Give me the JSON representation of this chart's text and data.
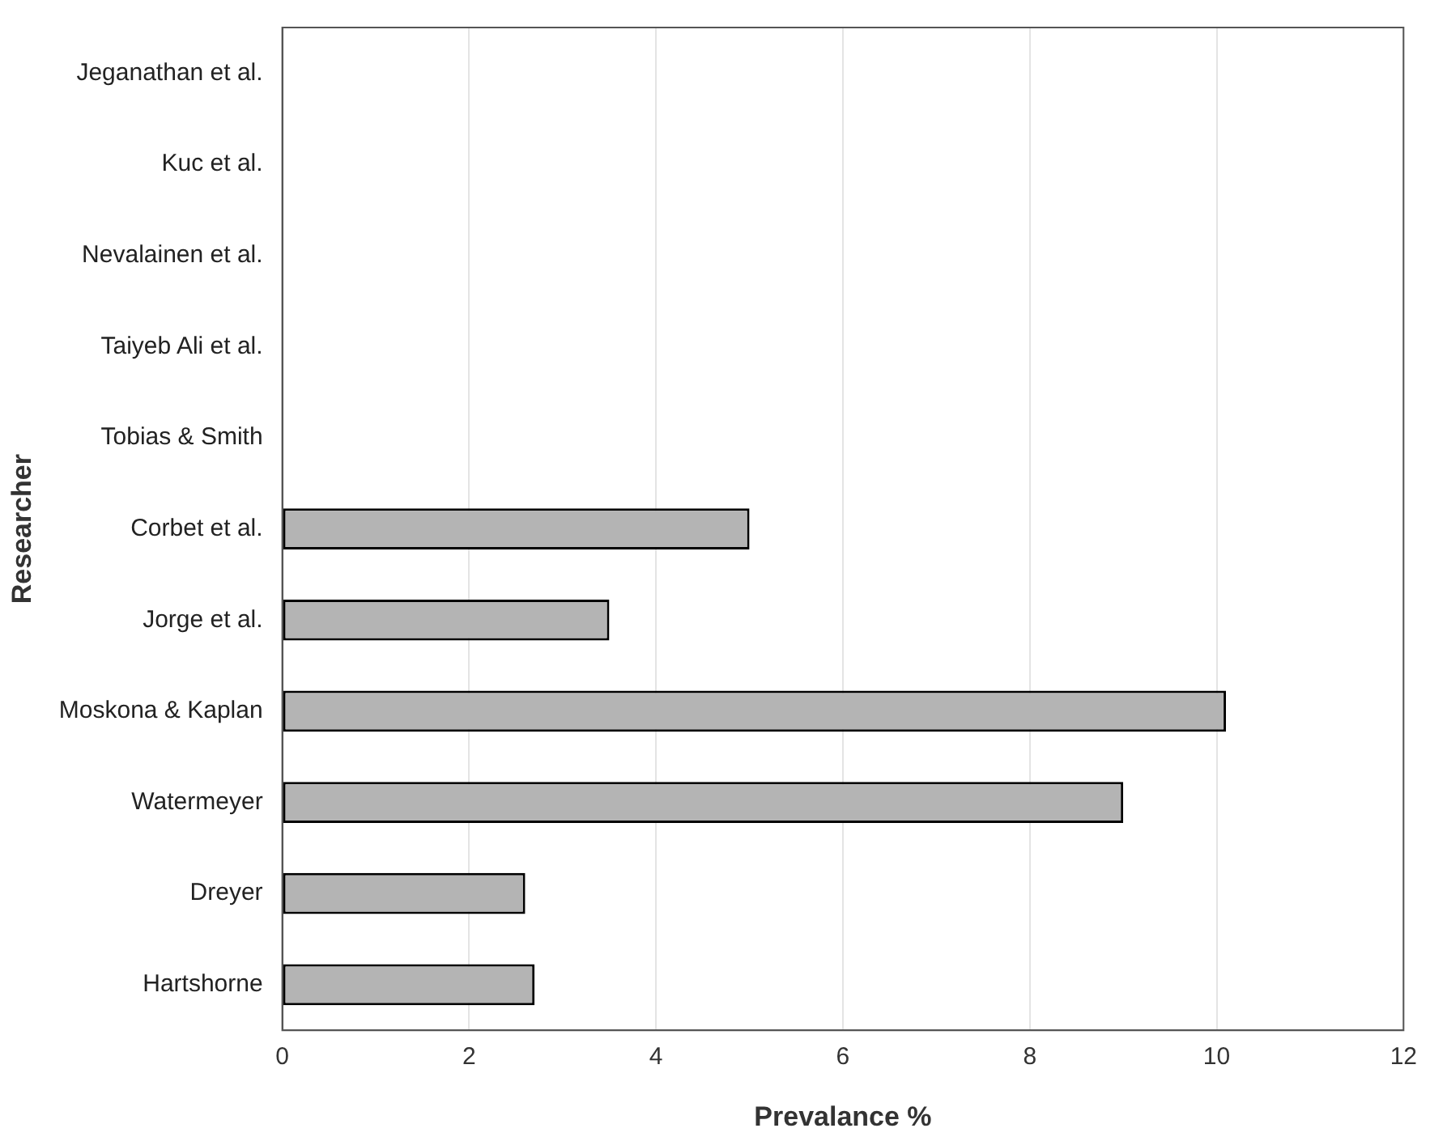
{
  "chart_data": {
    "type": "bar",
    "orientation": "horizontal",
    "xlabel": "Prevalance %",
    "ylabel": "Researcher",
    "categories": [
      "Jeganathan et al.",
      "Kuc et al.",
      "Nevalainen et al.",
      "Taiyeb Ali et al.",
      "Tobias & Smith",
      "Corbet et al.",
      "Jorge et al.",
      "Moskona & Kaplan",
      "Watermeyer",
      "Dreyer",
      "Hartshorne"
    ],
    "values": [
      0,
      0,
      0,
      0,
      0,
      5,
      3.5,
      10.1,
      9,
      2.6,
      2.7
    ],
    "color": "#b4b4b4",
    "xlim": [
      0,
      12
    ],
    "xticks": [
      0,
      2,
      4,
      6,
      8,
      10,
      12
    ],
    "grid": "x",
    "legend": false
  }
}
